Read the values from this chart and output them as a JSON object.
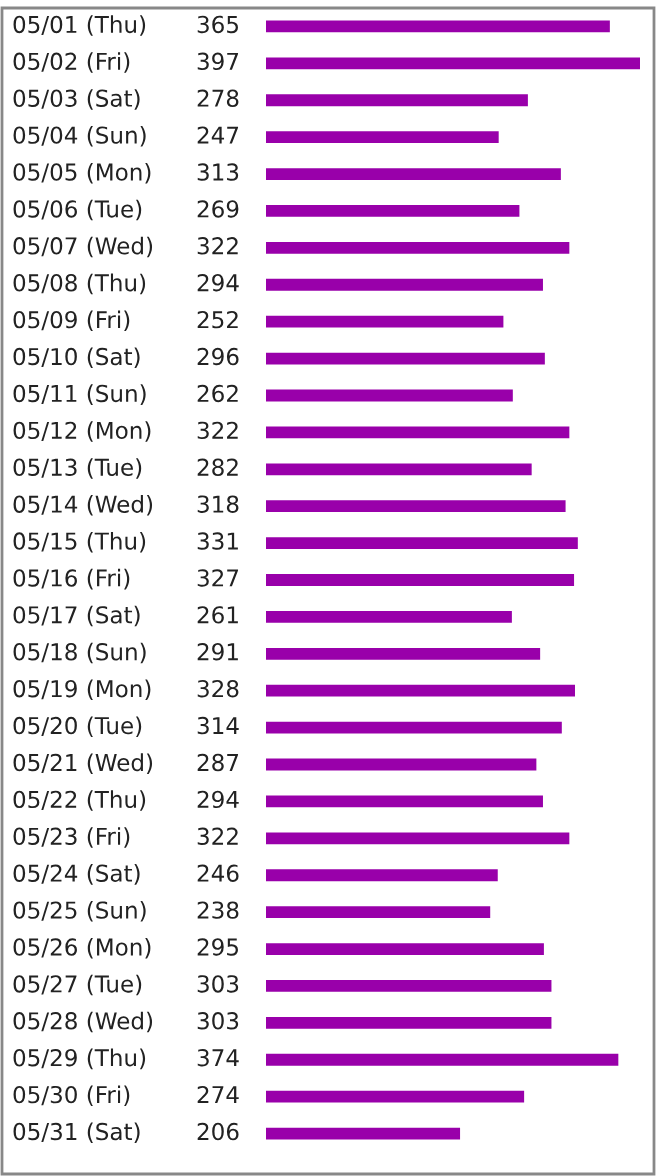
{
  "chart_data": {
    "type": "bar",
    "orientation": "horizontal",
    "data_labels": true,
    "color": "#9900aa",
    "categories": [
      "05/01 (Thu)",
      "05/02 (Fri)",
      "05/03 (Sat)",
      "05/04 (Sun)",
      "05/05 (Mon)",
      "05/06 (Tue)",
      "05/07 (Wed)",
      "05/08 (Thu)",
      "05/09 (Fri)",
      "05/10 (Sat)",
      "05/11 (Sun)",
      "05/12 (Mon)",
      "05/13 (Tue)",
      "05/14 (Wed)",
      "05/15 (Thu)",
      "05/16 (Fri)",
      "05/17 (Sat)",
      "05/18 (Sun)",
      "05/19 (Mon)",
      "05/20 (Tue)",
      "05/21 (Wed)",
      "05/22 (Thu)",
      "05/23 (Fri)",
      "05/24 (Sat)",
      "05/25 (Sun)",
      "05/26 (Mon)",
      "05/27 (Tue)",
      "05/28 (Wed)",
      "05/29 (Thu)",
      "05/30 (Fri)",
      "05/31 (Sat)"
    ],
    "values": [
      365,
      397,
      278,
      247,
      313,
      269,
      322,
      294,
      252,
      296,
      262,
      322,
      282,
      318,
      331,
      327,
      261,
      291,
      328,
      314,
      287,
      294,
      322,
      246,
      238,
      295,
      303,
      303,
      374,
      274,
      206
    ]
  }
}
